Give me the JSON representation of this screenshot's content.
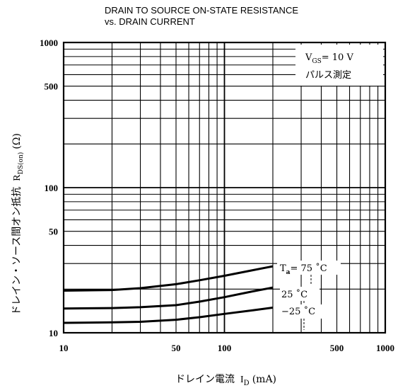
{
  "chart_data": {
    "type": "line",
    "title_line1": "DRAIN TO SOURCE ON-STATE RESISTANCE",
    "title_line2": "vs. DRAIN CURRENT",
    "xlabel_prefix": "ドレイン電流",
    "xlabel_symbol": "I",
    "xlabel_sub": "D",
    "xlabel_unit": "(mA)",
    "ylabel_prefix": "ドレイン・ソース間オン抵抗",
    "ylabel_symbol": "R",
    "ylabel_sub": "DS(on)",
    "ylabel_unit": "(Ω)",
    "x_scale": "log",
    "y_scale": "log",
    "xlim": [
      10,
      1000
    ],
    "ylim": [
      10,
      1000
    ],
    "x_ticks": [
      "10",
      "50",
      "100",
      "500",
      "1000"
    ],
    "y_ticks": [
      "10",
      "50",
      "100",
      "500",
      "1000"
    ],
    "grid": true,
    "annotation_vgs_symbol": "V",
    "annotation_vgs_sub": "GS",
    "annotation_vgs_value": "= 10 V",
    "annotation_pulse": "パルス測定",
    "series": [
      {
        "name": "T",
        "label_sub": "a",
        "label_suffix": "= 75 ˚C",
        "x": [
          10,
          20,
          30,
          50,
          70,
          100,
          150,
          200
        ],
        "y": [
          19.5,
          19.7,
          20.3,
          21.6,
          23.0,
          24.7,
          27.0,
          28.7
        ]
      },
      {
        "name": "25 ˚C",
        "x": [
          10,
          20,
          30,
          50,
          70,
          100,
          150,
          200
        ],
        "y": [
          14.7,
          14.8,
          15.0,
          15.5,
          16.4,
          17.6,
          19.3,
          20.5
        ]
      },
      {
        "name": "−25 ˚C",
        "x": [
          10,
          20,
          30,
          50,
          70,
          100,
          150,
          200
        ],
        "y": [
          11.7,
          11.8,
          11.9,
          12.3,
          12.8,
          13.5,
          14.3,
          14.9
        ]
      }
    ]
  }
}
